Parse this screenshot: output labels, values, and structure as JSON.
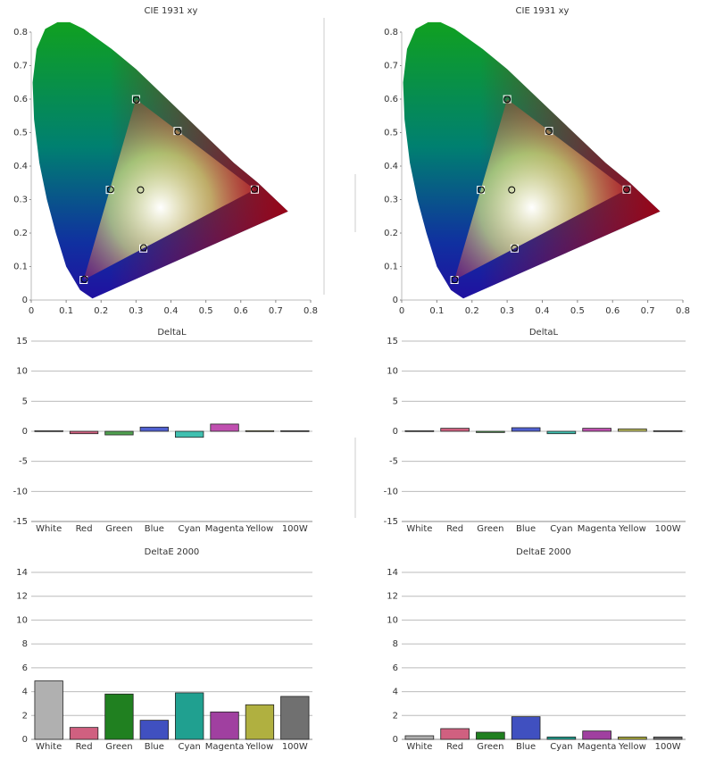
{
  "chart_data": [
    {
      "type": "scatter",
      "title": "CIE 1931 xy",
      "xlim": [
        0,
        0.8
      ],
      "ylim": [
        0,
        0.8
      ],
      "xticks": [
        0,
        0.1,
        0.2,
        0.3,
        0.4,
        0.5,
        0.6,
        0.7,
        0.8
      ],
      "yticks": [
        0,
        0.1,
        0.2,
        0.3,
        0.4,
        0.5,
        0.6,
        0.7,
        0.8
      ],
      "series": [
        {
          "marker": "square",
          "color": "#ffffff",
          "x": [
            0.64,
            0.3,
            0.15,
            0.225,
            0.321,
            0.419
          ],
          "values": [
            0.33,
            0.6,
            0.06,
            0.329,
            0.154,
            0.505
          ]
        },
        {
          "marker": "circle",
          "color": "#000000",
          "x": [
            0.313,
            0.639,
            0.301,
            0.152,
            0.227,
            0.322,
            0.42
          ],
          "values": [
            0.329,
            0.331,
            0.598,
            0.062,
            0.33,
            0.156,
            0.503
          ]
        }
      ]
    },
    {
      "type": "scatter",
      "title": "CIE 1931 xy",
      "xlim": [
        0,
        0.8
      ],
      "ylim": [
        0,
        0.8
      ],
      "xticks": [
        0,
        0.1,
        0.2,
        0.3,
        0.4,
        0.5,
        0.6,
        0.7,
        0.8
      ],
      "yticks": [
        0,
        0.1,
        0.2,
        0.3,
        0.4,
        0.5,
        0.6,
        0.7,
        0.8
      ],
      "series": [
        {
          "marker": "square",
          "color": "#ffffff",
          "x": [
            0.64,
            0.3,
            0.15,
            0.225,
            0.321,
            0.419
          ],
          "values": [
            0.33,
            0.6,
            0.06,
            0.329,
            0.154,
            0.505
          ]
        },
        {
          "marker": "circle",
          "color": "#000000",
          "x": [
            0.313,
            0.64,
            0.3,
            0.151,
            0.226,
            0.321,
            0.419
          ],
          "values": [
            0.329,
            0.33,
            0.599,
            0.061,
            0.329,
            0.155,
            0.504
          ]
        }
      ]
    },
    {
      "type": "bar",
      "title": "DeltaL",
      "categories": [
        "White",
        "Red",
        "Green",
        "Blue",
        "Cyan",
        "Magenta",
        "Yellow",
        "100W"
      ],
      "values": [
        0.1,
        -0.4,
        -0.6,
        0.7,
        -1.0,
        1.2,
        0.1,
        0.1
      ],
      "colors": [
        "#b0b0b0",
        "#d06080",
        "#50a050",
        "#5060d0",
        "#40c0b0",
        "#c050b0",
        "#c0c060",
        "#909090"
      ],
      "ylim": [
        -15,
        15
      ],
      "yticks": [
        -15,
        -10,
        -5,
        0,
        5,
        10,
        15
      ],
      "grid": true
    },
    {
      "type": "bar",
      "title": "DeltaL",
      "categories": [
        "White",
        "Red",
        "Green",
        "Blue",
        "Cyan",
        "Magenta",
        "Yellow",
        "100W"
      ],
      "values": [
        0.1,
        0.5,
        -0.2,
        0.6,
        -0.4,
        0.5,
        0.4,
        0.1
      ],
      "colors": [
        "#b0b0b0",
        "#d06080",
        "#50a050",
        "#5060d0",
        "#40c0b0",
        "#c050b0",
        "#c0c060",
        "#909090"
      ],
      "ylim": [
        -15,
        15
      ],
      "yticks": [
        -15,
        -10,
        -5,
        0,
        5,
        10,
        15
      ],
      "grid": true
    },
    {
      "type": "bar",
      "title": "DeltaE 2000",
      "categories": [
        "White",
        "Red",
        "Green",
        "Blue",
        "Cyan",
        "Magenta",
        "Yellow",
        "100W"
      ],
      "values": [
        4.9,
        1.0,
        3.8,
        1.6,
        3.9,
        2.3,
        2.9,
        3.6
      ],
      "colors": [
        "#b0b0b0",
        "#d06080",
        "#208020",
        "#4050c0",
        "#20a090",
        "#a040a0",
        "#b0b040",
        "#707070"
      ],
      "ylim": [
        0,
        14
      ],
      "yticks": [
        0,
        2,
        4,
        6,
        8,
        10,
        12,
        14
      ],
      "grid": true
    },
    {
      "type": "bar",
      "title": "DeltaE 2000",
      "categories": [
        "White",
        "Red",
        "Green",
        "Blue",
        "Cyan",
        "Magenta",
        "Yellow",
        "100W"
      ],
      "values": [
        0.3,
        0.9,
        0.6,
        1.9,
        0.2,
        0.7,
        0.2,
        0.2
      ],
      "colors": [
        "#b0b0b0",
        "#d06080",
        "#208020",
        "#4050c0",
        "#20a090",
        "#a040a0",
        "#b0b040",
        "#707070"
      ],
      "ylim": [
        0,
        14
      ],
      "yticks": [
        0,
        2,
        4,
        6,
        8,
        10,
        12,
        14
      ],
      "grid": true
    }
  ]
}
